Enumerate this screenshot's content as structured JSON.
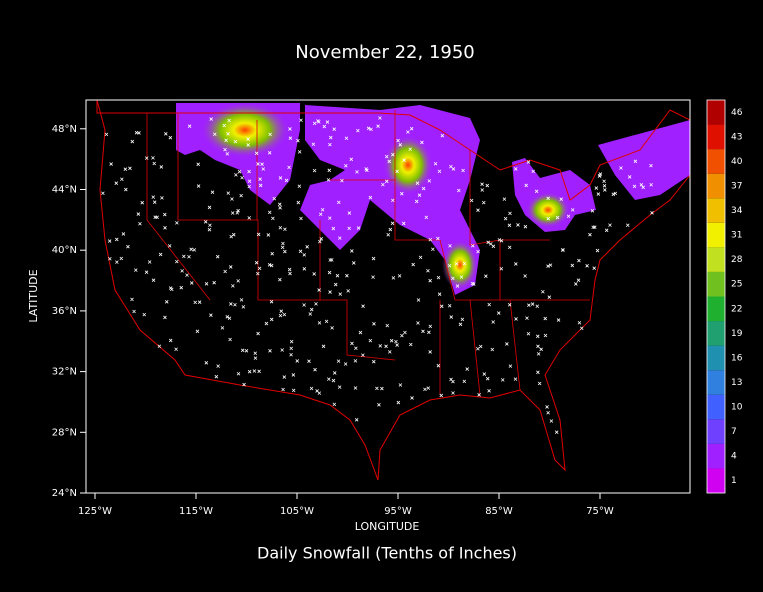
{
  "title": "November 22, 1950",
  "x_axis": {
    "label": "LONGITUDE",
    "ticks": [
      "125°W",
      "115°W",
      "105°W",
      "95°W",
      "85°W",
      "75°W"
    ]
  },
  "y_axis": {
    "label": "LATITUDE",
    "ticks": [
      "24°N",
      "28°N",
      "32°N",
      "36°N",
      "40°N",
      "44°N",
      "48°N"
    ]
  },
  "colorbar": {
    "labels": [
      1,
      4,
      7,
      10,
      13,
      16,
      19,
      22,
      25,
      28,
      31,
      34,
      37,
      40,
      43,
      46
    ],
    "colors": [
      "#d000f0",
      "#a020ff",
      "#7040ff",
      "#4060ff",
      "#3080e0",
      "#2090b0",
      "#20a070",
      "#20b030",
      "#70c020",
      "#c0e020",
      "#f0f000",
      "#f0c000",
      "#f09000",
      "#f05000",
      "#e01000",
      "#b00000"
    ]
  },
  "caption": "Daily Snowfall (Tenths of Inches)"
}
